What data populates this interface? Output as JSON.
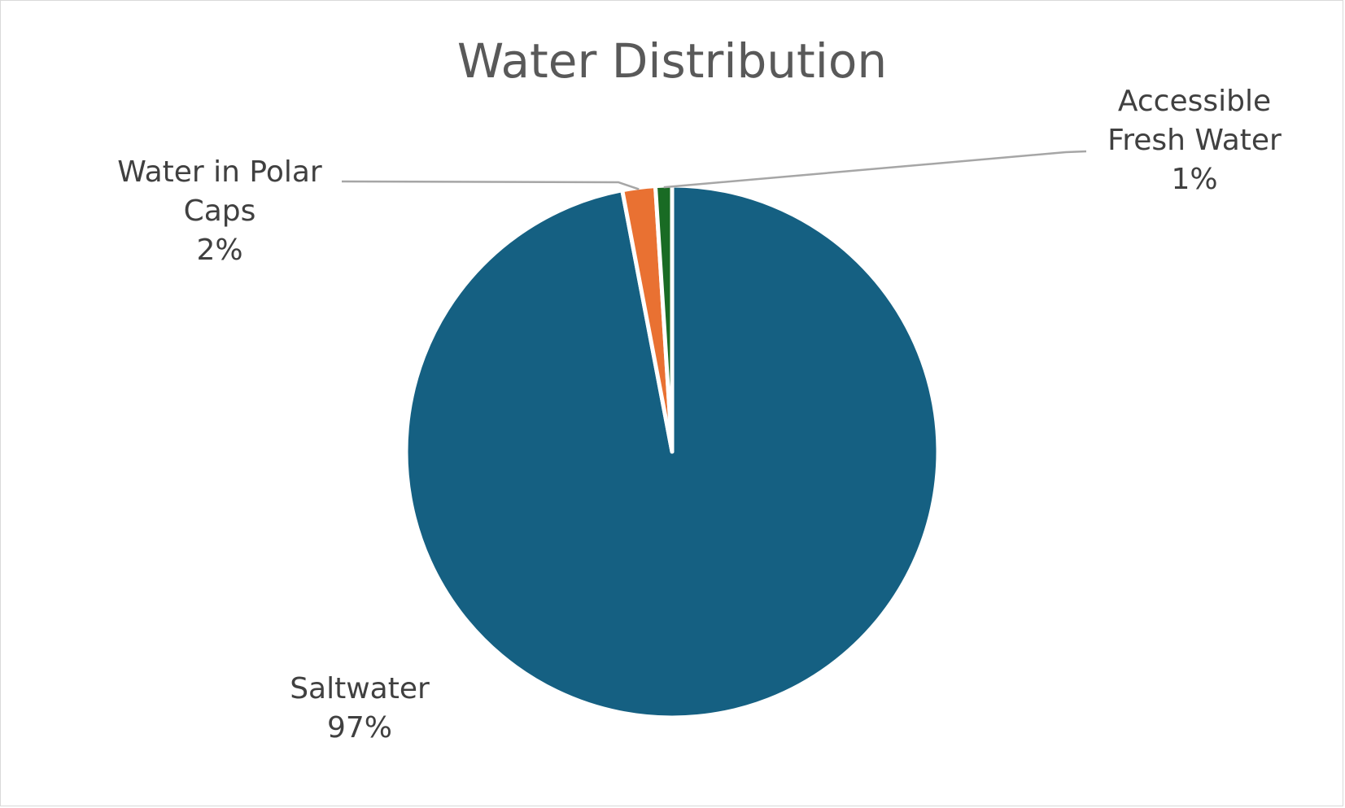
{
  "chart_data": {
    "type": "pie",
    "title": "Water Distribution",
    "categories": [
      "Saltwater",
      "Water in Polar Caps",
      "Accessible Fresh Water"
    ],
    "values": [
      97,
      2,
      1
    ],
    "label_values": [
      "97%",
      "2%",
      "1%"
    ],
    "label_lines": [
      [
        "Saltwater",
        "97%"
      ],
      [
        "Water in Polar",
        "Caps",
        "2%"
      ],
      [
        "Accessible",
        "Fresh Water",
        "1%"
      ]
    ],
    "colors": [
      "#156082",
      "#E97132",
      "#196B24"
    ],
    "start_angle_deg": 0,
    "direction": "clockwise",
    "legend": "none"
  }
}
